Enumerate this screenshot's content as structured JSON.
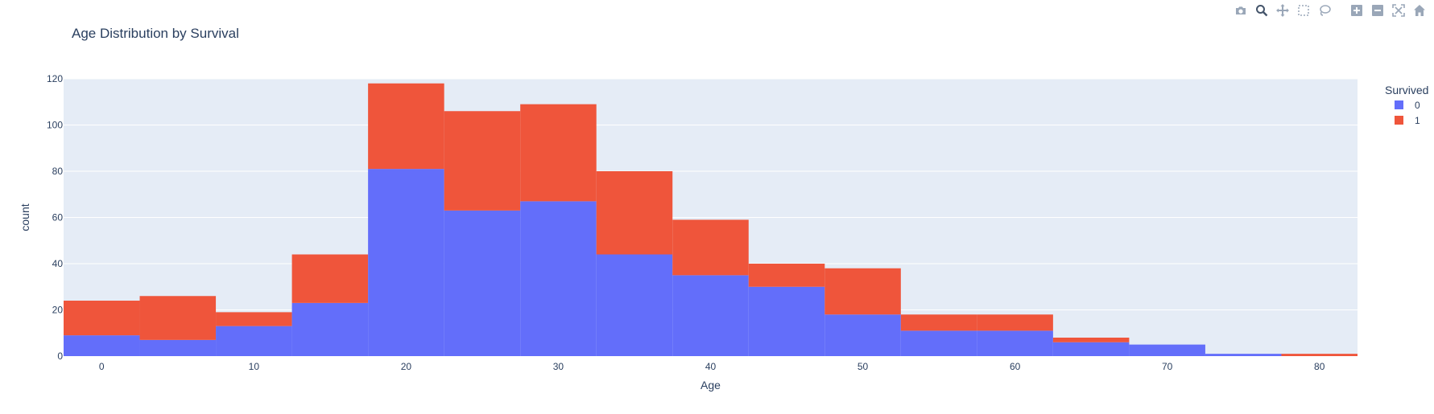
{
  "modebar": {
    "buttons": [
      "camera-icon",
      "zoom-icon",
      "pan-icon",
      "box-select-icon",
      "lasso-icon",
      "zoom-in-icon",
      "zoom-out-icon",
      "autoscale-icon",
      "home-icon"
    ]
  },
  "chart_data": {
    "type": "bar",
    "barmode": "stack",
    "title": "Age Distribution by Survival",
    "xlabel": "Age",
    "ylabel": "count",
    "xlim": [
      -2.5,
      82.5
    ],
    "ylim": [
      0,
      120
    ],
    "xticks": [
      0,
      10,
      20,
      30,
      40,
      50,
      60,
      70,
      80
    ],
    "yticks": [
      0,
      20,
      40,
      60,
      80,
      100,
      120
    ],
    "bin_width": 5,
    "bin_starts": [
      -2.5,
      2.5,
      7.5,
      12.5,
      17.5,
      22.5,
      27.5,
      32.5,
      37.5,
      42.5,
      47.5,
      52.5,
      57.5,
      62.5,
      67.5,
      72.5,
      77.5
    ],
    "grid": true,
    "legend": {
      "title": "Survived",
      "position": "top-right"
    },
    "series": [
      {
        "name": "0",
        "color": "#636efa",
        "values": [
          9,
          7,
          13,
          23,
          81,
          63,
          67,
          44,
          35,
          30,
          18,
          11,
          11,
          6,
          5,
          1,
          0
        ]
      },
      {
        "name": "1",
        "color": "#ef553b",
        "values": [
          15,
          19,
          6,
          21,
          37,
          43,
          42,
          36,
          24,
          10,
          20,
          7,
          7,
          2,
          0,
          0,
          1
        ]
      }
    ],
    "colors": {
      "plot_bg": "#e5ecf6",
      "grid": "#ffffff",
      "text": "#2a3f5f"
    }
  }
}
